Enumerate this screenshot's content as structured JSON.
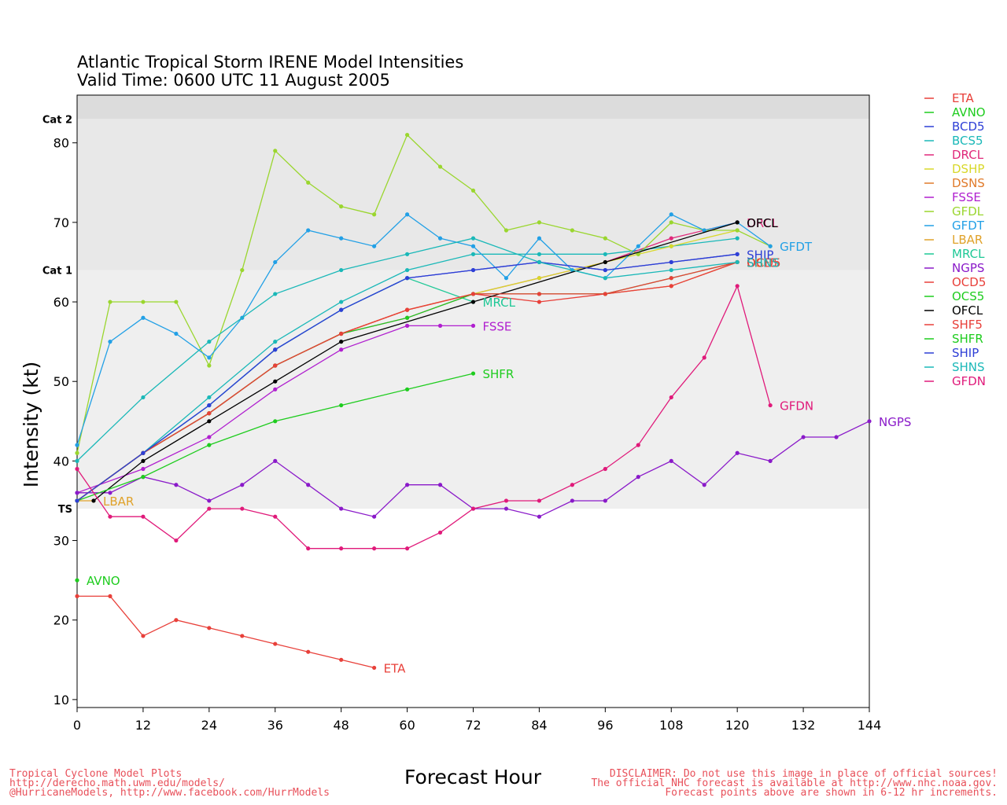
{
  "title": {
    "line1": "Atlantic Tropical Storm IRENE Model Intensities",
    "line2": "Valid Time: 0600 UTC 11 August 2005"
  },
  "footer": {
    "left": [
      "Tropical Cyclone Model Plots",
      "http://derecho.math.uwm.edu/models/",
      "@HurricaneModels, http://www.facebook.com/HurrModels"
    ],
    "right": [
      "DISCLAIMER: Do not use this image in place of official sources!",
      "The official NHC forecast is available at http://www.nhc.noaa.gov.",
      "Forecast points above are shown in 6-12 hr increments."
    ]
  },
  "chart_data": {
    "type": "line",
    "xlabel": "Forecast Hour",
    "ylabel": "Intensity (kt)",
    "xlim": [
      0,
      144
    ],
    "ylim": [
      9,
      86
    ],
    "xticks": [
      0,
      12,
      24,
      36,
      48,
      60,
      72,
      84,
      96,
      108,
      120,
      132,
      144
    ],
    "yticks": [
      10,
      20,
      30,
      40,
      50,
      60,
      70,
      80
    ],
    "bands": [
      {
        "name": "TS",
        "from": 34,
        "to": 64,
        "color": "#efefef"
      },
      {
        "name": "Cat 1",
        "from": 64,
        "to": 83,
        "color": "#e8e8e8"
      },
      {
        "name": "Cat 2",
        "from": 83,
        "to": 86,
        "color": "#dcdcdc"
      }
    ],
    "category_labels": [
      {
        "text": "TS",
        "y": 34
      },
      {
        "text": "Cat 1",
        "y": 64
      },
      {
        "text": "Cat 2",
        "y": 83
      }
    ],
    "legend": [
      "ETA",
      "AVNO",
      "BCD5",
      "BCS5",
      "DRCL",
      "DSHP",
      "DSNS",
      "FSSE",
      "GFDL",
      "GFDT",
      "LBAR",
      "MRCL",
      "NGPS",
      "OCD5",
      "OCS5",
      "OFCL",
      "SHF5",
      "SHFR",
      "SHIP",
      "SHNS",
      "GFDN"
    ],
    "series": [
      {
        "name": "ETA",
        "color": "#e8403a",
        "label": "ETA",
        "x": [
          0,
          6,
          12,
          18,
          24,
          30,
          36,
          42,
          48,
          54
        ],
        "y": [
          23,
          23,
          18,
          20,
          19,
          18,
          17,
          16,
          15,
          14
        ]
      },
      {
        "name": "AVNO",
        "color": "#1ecc1e",
        "label": "AVNO",
        "x": [
          0
        ],
        "y": [
          25
        ]
      },
      {
        "name": "BCD5",
        "color": "#2e3fd6",
        "label": "",
        "x": [
          0,
          12,
          24,
          36,
          48,
          60,
          72,
          84,
          96,
          108,
          120
        ],
        "y": [
          35,
          41,
          47,
          54,
          59,
          63,
          64,
          65,
          64,
          65,
          66
        ]
      },
      {
        "name": "BCS5",
        "color": "#1ab8b8",
        "label": "",
        "x": [
          0,
          12,
          24,
          36,
          48,
          60,
          72,
          84,
          96,
          108,
          120
        ],
        "y": [
          35,
          41,
          48,
          55,
          60,
          64,
          66,
          66,
          66,
          67,
          68
        ]
      },
      {
        "name": "DRCL",
        "color": "#e0287a",
        "label": "DRCL",
        "x": [
          0,
          12,
          24,
          36,
          48,
          60,
          72,
          84,
          96,
          108,
          120
        ],
        "y": [
          35,
          41,
          46,
          52,
          56,
          58,
          61,
          63,
          65,
          68,
          70
        ]
      },
      {
        "name": "DSHP",
        "color": "#d8d82a",
        "label": "",
        "x": [
          0,
          12,
          24,
          36,
          48,
          60,
          72,
          84,
          96,
          108,
          120
        ],
        "y": [
          35,
          41,
          46,
          52,
          56,
          59,
          61,
          63,
          65,
          67,
          69
        ]
      },
      {
        "name": "DSNS",
        "color": "#e07a2a",
        "label": "DSNS",
        "x": [
          0,
          12,
          24,
          36,
          48,
          60,
          72,
          84,
          96,
          108,
          120
        ],
        "y": [
          35,
          41,
          46,
          52,
          56,
          59,
          61,
          61,
          61,
          62,
          65
        ]
      },
      {
        "name": "FSSE",
        "color": "#b01fcf",
        "label": "FSSE",
        "x": [
          0,
          12,
          24,
          36,
          48,
          60,
          66,
          72
        ],
        "y": [
          36,
          39,
          43,
          49,
          54,
          57,
          57,
          57
        ]
      },
      {
        "name": "GFDL",
        "color": "#9ad62e",
        "label": "",
        "x": [
          0,
          6,
          12,
          18,
          24,
          30,
          36,
          42,
          48,
          54,
          60,
          66,
          72,
          78,
          84,
          90,
          96,
          102,
          108,
          114,
          120,
          126
        ],
        "y": [
          41,
          60,
          60,
          60,
          52,
          64,
          79,
          75,
          72,
          71,
          81,
          77,
          74,
          69,
          70,
          69,
          68,
          66,
          70,
          69,
          69,
          67
        ]
      },
      {
        "name": "GFDT",
        "color": "#22a0e6",
        "label": "GFDT",
        "x": [
          0,
          6,
          12,
          18,
          24,
          30,
          36,
          42,
          48,
          54,
          60,
          66,
          72,
          78,
          84,
          90,
          96,
          102,
          108,
          114,
          120,
          126
        ],
        "y": [
          42,
          55,
          58,
          56,
          53,
          58,
          65,
          69,
          68,
          67,
          71,
          68,
          67,
          63,
          68,
          64,
          63,
          67,
          71,
          69,
          70,
          67
        ]
      },
      {
        "name": "LBAR",
        "color": "#e0a22a",
        "label": "LBAR",
        "x": [
          0,
          3
        ],
        "y": [
          35,
          35
        ]
      },
      {
        "name": "MRCL",
        "color": "#1ec896",
        "label": "MRCL",
        "x": [
          0,
          12,
          24,
          36,
          48,
          60,
          72
        ],
        "y": [
          35,
          41,
          47,
          54,
          59,
          63,
          60
        ]
      },
      {
        "name": "NGPS",
        "color": "#8a1ac9",
        "label": "NGPS",
        "x": [
          0,
          6,
          12,
          18,
          24,
          30,
          36,
          42,
          48,
          54,
          60,
          66,
          72,
          78,
          84,
          90,
          96,
          102,
          108,
          114,
          120,
          126,
          132,
          138,
          144
        ],
        "y": [
          36,
          36,
          38,
          37,
          35,
          37,
          40,
          37,
          34,
          33,
          37,
          37,
          34,
          34,
          33,
          35,
          35,
          38,
          40,
          37,
          41,
          40,
          43,
          43,
          45
        ]
      },
      {
        "name": "OCD5",
        "color": "#e8403a",
        "label": "OCD5",
        "x": [
          0,
          12,
          24,
          36,
          48,
          60,
          72,
          84,
          96,
          108,
          120
        ],
        "y": [
          35,
          41,
          46,
          52,
          56,
          59,
          61,
          60,
          61,
          62,
          65
        ]
      },
      {
        "name": "OCS5",
        "color": "#1ecc1e",
        "label": "",
        "x": [
          0,
          12,
          24,
          36,
          48,
          60,
          72,
          84,
          96,
          108,
          120
        ],
        "y": [
          35,
          41,
          46,
          52,
          56,
          58,
          61,
          61,
          61,
          63,
          65
        ]
      },
      {
        "name": "OFCL",
        "color": "#000000",
        "label": "OFCL",
        "x": [
          3,
          12,
          24,
          36,
          48,
          72,
          96,
          120
        ],
        "y": [
          35,
          40,
          45,
          50,
          55,
          60,
          65,
          70
        ]
      },
      {
        "name": "SHF5",
        "color": "#e8403a",
        "label": "SHF5",
        "x": [
          0,
          12,
          24,
          36,
          48,
          60,
          72,
          84,
          96,
          108,
          120
        ],
        "y": [
          35,
          41,
          46,
          52,
          56,
          59,
          61,
          61,
          61,
          63,
          65
        ]
      },
      {
        "name": "SHFR",
        "color": "#1ecc1e",
        "label": "SHFR",
        "x": [
          0,
          12,
          24,
          36,
          48,
          60,
          72
        ],
        "y": [
          35,
          38,
          42,
          45,
          47,
          49,
          51
        ]
      },
      {
        "name": "SHIP",
        "color": "#2e3fd6",
        "label": "SHIP",
        "x": [
          0,
          12,
          24,
          36,
          48,
          60,
          72,
          84,
          96,
          108,
          120
        ],
        "y": [
          35,
          41,
          47,
          54,
          59,
          63,
          64,
          65,
          64,
          65,
          66
        ]
      },
      {
        "name": "SHNS",
        "color": "#1ab8b8",
        "label": "SHNS",
        "x": [
          0,
          12,
          24,
          36,
          48,
          60,
          72,
          84,
          96,
          108,
          120
        ],
        "y": [
          40,
          48,
          55,
          61,
          64,
          66,
          68,
          65,
          63,
          64,
          65
        ]
      },
      {
        "name": "GFDN",
        "color": "#e01a7a",
        "label": "GFDN",
        "x": [
          0,
          6,
          12,
          18,
          24,
          30,
          36,
          42,
          48,
          54,
          60,
          66,
          72,
          78,
          84,
          90,
          96,
          102,
          108,
          114,
          120,
          126
        ],
        "y": [
          39,
          33,
          33,
          30,
          34,
          34,
          33,
          29,
          29,
          29,
          29,
          31,
          34,
          35,
          35,
          37,
          39,
          42,
          48,
          53,
          62,
          47
        ]
      }
    ]
  }
}
